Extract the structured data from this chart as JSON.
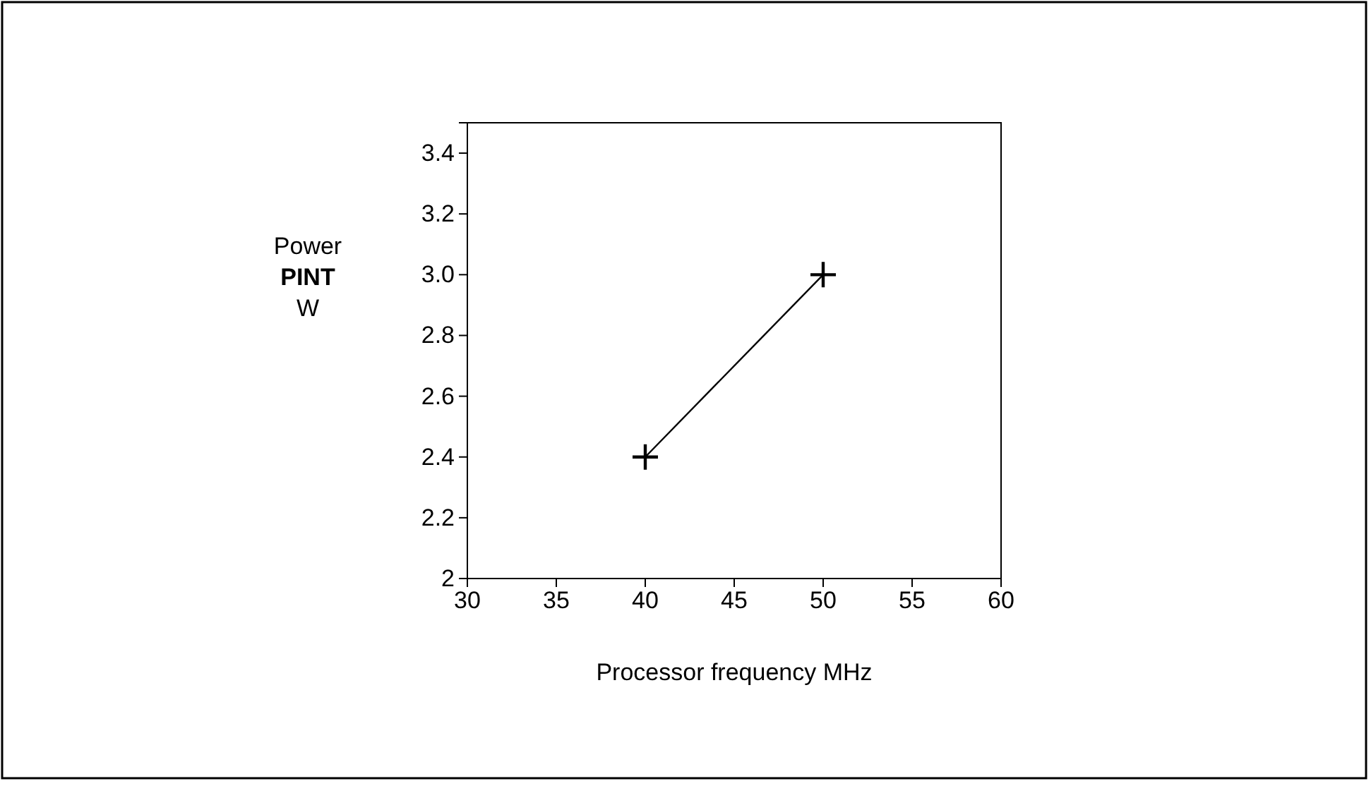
{
  "chart_data": {
    "type": "line",
    "xlabel": "Processor frequency MHz",
    "ylabel": "Power\nPINT\nW",
    "x": [
      40,
      50
    ],
    "values": [
      2.4,
      3.0
    ],
    "color": "#000000",
    "marker": "cross",
    "line_style": "solid",
    "grid": false,
    "xlim": [
      30,
      60
    ],
    "xticks": [
      30,
      35,
      40,
      45,
      50,
      55,
      60
    ],
    "ylim": [
      2,
      3.5
    ],
    "yticks": [
      2,
      {
        "value": 2.2,
        "label": "2.2"
      },
      {
        "value": 2.4,
        "label": "2.4"
      },
      {
        "value": 2.6,
        "label": "2.6"
      },
      {
        "value": 2.8,
        "label": "2.8"
      },
      {
        "value": 3.0,
        "label": "3.0"
      },
      {
        "value": 3.2,
        "label": "3.2"
      },
      {
        "value": 3.4,
        "label": "3.4"
      }
    ]
  }
}
